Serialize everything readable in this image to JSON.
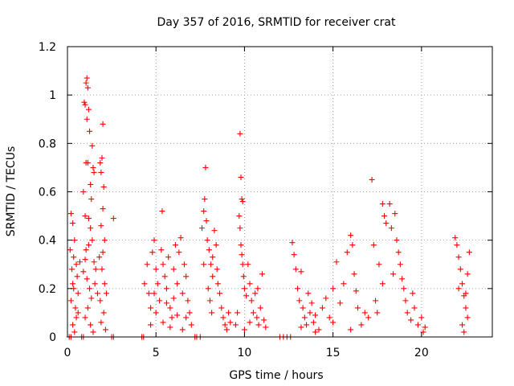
{
  "chart_data": {
    "type": "scatter",
    "title": "Day 357 of 2016, SRMTID for receiver crat",
    "xlabel": "GPS time / hours",
    "ylabel": "SRMTID / TECUs",
    "xlim": [
      0,
      24
    ],
    "ylim": [
      0,
      1.2
    ],
    "x_ticks": [
      0,
      5,
      10,
      15,
      20
    ],
    "y_ticks": [
      0,
      0.2,
      0.4,
      0.6,
      0.8,
      1,
      1.2
    ],
    "x_tick_labels": [
      "0",
      "5",
      "10",
      "15",
      "20"
    ],
    "y_tick_labels": [
      "0",
      "0.2",
      "0.4",
      "0.6",
      "0.8",
      "1",
      "1.2"
    ],
    "grid": true,
    "marker": "+",
    "color": "#ff0000",
    "series": [
      {
        "name": "SRMTID",
        "points": [
          [
            0.2,
            0.51
          ],
          [
            0.3,
            0.47
          ],
          [
            0.4,
            0.4
          ],
          [
            0.35,
            0.33
          ],
          [
            0.25,
            0.28
          ],
          [
            0.3,
            0.22
          ],
          [
            0.2,
            0.15
          ],
          [
            0.45,
            0.12
          ],
          [
            0.5,
            0.08
          ],
          [
            0.3,
            0.05
          ],
          [
            0.4,
            0.02
          ],
          [
            0.6,
            0.18
          ],
          [
            0.55,
            0.25
          ],
          [
            0.7,
            0.31
          ],
          [
            0.15,
            0.36
          ],
          [
            0.6,
            0.1
          ],
          [
            0.35,
            0.2
          ],
          [
            0.5,
            0.3
          ],
          [
            0.95,
            0.97
          ],
          [
            1.0,
            0.96
          ],
          [
            1.05,
            1.05
          ],
          [
            1.1,
            1.07
          ],
          [
            1.15,
            1.03
          ],
          [
            1.2,
            0.94
          ],
          [
            1.25,
            0.85
          ],
          [
            1.1,
            0.9
          ],
          [
            1.05,
            0.72
          ],
          [
            1.15,
            0.72
          ],
          [
            0.9,
            0.6
          ],
          [
            1.0,
            0.5
          ],
          [
            1.2,
            0.49
          ],
          [
            1.3,
            0.63
          ],
          [
            1.35,
            0.57
          ],
          [
            1.4,
            0.79
          ],
          [
            1.45,
            0.7
          ],
          [
            1.5,
            0.68
          ],
          [
            1.3,
            0.45
          ],
          [
            1.4,
            0.4
          ],
          [
            1.2,
            0.38
          ],
          [
            1.0,
            0.32
          ],
          [
            0.9,
            0.27
          ],
          [
            1.1,
            0.24
          ],
          [
            1.25,
            0.2
          ],
          [
            1.35,
            0.16
          ],
          [
            1.15,
            0.12
          ],
          [
            1.0,
            0.08
          ],
          [
            1.3,
            0.05
          ],
          [
            1.45,
            0.02
          ],
          [
            1.5,
            0.31
          ],
          [
            1.6,
            0.28
          ],
          [
            1.55,
            0.22
          ],
          [
            1.7,
            0.18
          ],
          [
            1.05,
            0.36
          ],
          [
            1.85,
            0.72
          ],
          [
            1.9,
            0.68
          ],
          [
            2.0,
            0.88
          ],
          [
            1.95,
            0.74
          ],
          [
            2.05,
            0.62
          ],
          [
            2.0,
            0.53
          ],
          [
            1.9,
            0.46
          ],
          [
            2.1,
            0.4
          ],
          [
            2.0,
            0.35
          ],
          [
            1.95,
            0.28
          ],
          [
            2.1,
            0.22
          ],
          [
            1.85,
            0.15
          ],
          [
            2.05,
            0.1
          ],
          [
            1.9,
            0.06
          ],
          [
            2.15,
            0.03
          ],
          [
            2.6,
            0.49
          ],
          [
            1.8,
            0.33
          ],
          [
            2.2,
            0.18
          ],
          [
            0.1,
            0.0
          ],
          [
            0.2,
            0.0
          ],
          [
            0.8,
            0.0
          ],
          [
            0.9,
            0.0
          ],
          [
            2.5,
            0.0
          ],
          [
            2.6,
            0.0
          ],
          [
            4.2,
            0.0
          ],
          [
            4.3,
            0.0
          ],
          [
            4.35,
            0.22
          ],
          [
            4.5,
            0.3
          ],
          [
            4.6,
            0.18
          ],
          [
            4.7,
            0.12
          ],
          [
            4.8,
            0.35
          ],
          [
            4.9,
            0.4
          ],
          [
            5.0,
            0.28
          ],
          [
            5.1,
            0.22
          ],
          [
            5.2,
            0.15
          ],
          [
            5.3,
            0.36
          ],
          [
            5.35,
            0.52
          ],
          [
            5.4,
            0.3
          ],
          [
            5.5,
            0.25
          ],
          [
            5.6,
            0.2
          ],
          [
            5.7,
            0.33
          ],
          [
            5.8,
            0.12
          ],
          [
            5.9,
            0.08
          ],
          [
            6.0,
            0.28
          ],
          [
            6.1,
            0.38
          ],
          [
            6.2,
            0.22
          ],
          [
            6.3,
            0.35
          ],
          [
            6.4,
            0.41
          ],
          [
            6.5,
            0.18
          ],
          [
            6.6,
            0.3
          ],
          [
            6.7,
            0.25
          ],
          [
            6.8,
            0.15
          ],
          [
            6.9,
            0.1
          ],
          [
            7.0,
            0.05
          ],
          [
            4.7,
            0.05
          ],
          [
            5.0,
            0.1
          ],
          [
            5.4,
            0.06
          ],
          [
            5.8,
            0.04
          ],
          [
            6.2,
            0.09
          ],
          [
            6.5,
            0.03
          ],
          [
            4.9,
            0.18
          ],
          [
            5.6,
            0.14
          ],
          [
            6.0,
            0.16
          ],
          [
            6.7,
            0.08
          ],
          [
            7.2,
            0.0
          ],
          [
            7.3,
            0.0
          ],
          [
            7.5,
            0.0
          ],
          [
            7.6,
            0.45
          ],
          [
            7.7,
            0.52
          ],
          [
            7.75,
            0.57
          ],
          [
            7.8,
            0.7
          ],
          [
            7.85,
            0.48
          ],
          [
            7.9,
            0.4
          ],
          [
            8.0,
            0.36
          ],
          [
            8.1,
            0.3
          ],
          [
            8.2,
            0.25
          ],
          [
            7.95,
            0.2
          ],
          [
            8.05,
            0.15
          ],
          [
            8.15,
            0.1
          ],
          [
            8.3,
            0.44
          ],
          [
            8.4,
            0.38
          ],
          [
            8.5,
            0.22
          ],
          [
            8.6,
            0.18
          ],
          [
            8.7,
            0.12
          ],
          [
            8.8,
            0.08
          ],
          [
            8.9,
            0.05
          ],
          [
            9.0,
            0.03
          ],
          [
            9.1,
            0.1
          ],
          [
            9.2,
            0.06
          ],
          [
            7.7,
            0.3
          ],
          [
            8.2,
            0.33
          ],
          [
            8.45,
            0.28
          ],
          [
            9.75,
            0.84
          ],
          [
            9.8,
            0.66
          ],
          [
            9.85,
            0.57
          ],
          [
            9.9,
            0.56
          ],
          [
            9.7,
            0.5
          ],
          [
            9.75,
            0.45
          ],
          [
            9.8,
            0.38
          ],
          [
            9.85,
            0.34
          ],
          [
            9.9,
            0.3
          ],
          [
            9.95,
            0.25
          ],
          [
            10.0,
            0.2
          ],
          [
            10.1,
            0.17
          ],
          [
            10.2,
            0.3
          ],
          [
            10.3,
            0.22
          ],
          [
            10.4,
            0.15
          ],
          [
            10.5,
            0.1
          ],
          [
            10.6,
            0.18
          ],
          [
            10.7,
            0.08
          ],
          [
            10.8,
            0.05
          ],
          [
            10.9,
            0.12
          ],
          [
            11.0,
            0.26
          ],
          [
            11.1,
            0.07
          ],
          [
            11.2,
            0.04
          ],
          [
            9.6,
            0.1
          ],
          [
            9.5,
            0.05
          ],
          [
            10.0,
            0.03
          ],
          [
            10.3,
            0.06
          ],
          [
            10.75,
            0.2
          ],
          [
            12.0,
            0.0
          ],
          [
            12.2,
            0.0
          ],
          [
            12.4,
            0.0
          ],
          [
            12.6,
            0.0
          ],
          [
            12.7,
            0.39
          ],
          [
            12.8,
            0.34
          ],
          [
            12.9,
            0.28
          ],
          [
            13.0,
            0.2
          ],
          [
            13.1,
            0.15
          ],
          [
            13.2,
            0.27
          ],
          [
            13.3,
            0.12
          ],
          [
            13.4,
            0.08
          ],
          [
            13.5,
            0.05
          ],
          [
            13.6,
            0.18
          ],
          [
            13.7,
            0.1
          ],
          [
            13.8,
            0.14
          ],
          [
            13.9,
            0.06
          ],
          [
            14.0,
            0.09
          ],
          [
            14.2,
            0.03
          ],
          [
            14.4,
            0.12
          ],
          [
            14.6,
            0.16
          ],
          [
            14.8,
            0.08
          ],
          [
            15.0,
            0.2
          ],
          [
            15.2,
            0.31
          ],
          [
            15.4,
            0.14
          ],
          [
            15.6,
            0.22
          ],
          [
            15.8,
            0.35
          ],
          [
            16.0,
            0.42
          ],
          [
            16.1,
            0.38
          ],
          [
            16.2,
            0.26
          ],
          [
            16.3,
            0.19
          ],
          [
            16.4,
            0.12
          ],
          [
            16.6,
            0.05
          ],
          [
            16.8,
            0.1
          ],
          [
            17.0,
            0.08
          ],
          [
            17.2,
            0.65
          ],
          [
            17.3,
            0.38
          ],
          [
            17.4,
            0.15
          ],
          [
            17.5,
            0.1
          ],
          [
            17.6,
            0.3
          ],
          [
            17.8,
            0.55
          ],
          [
            17.9,
            0.5
          ],
          [
            18.0,
            0.47
          ],
          [
            18.2,
            0.55
          ],
          [
            18.3,
            0.45
          ],
          [
            18.5,
            0.51
          ],
          [
            18.6,
            0.4
          ],
          [
            18.7,
            0.35
          ],
          [
            18.8,
            0.3
          ],
          [
            18.9,
            0.24
          ],
          [
            19.0,
            0.2
          ],
          [
            19.1,
            0.15
          ],
          [
            19.2,
            0.1
          ],
          [
            19.4,
            0.07
          ],
          [
            19.6,
            0.12
          ],
          [
            19.8,
            0.05
          ],
          [
            20.0,
            0.08
          ],
          [
            20.2,
            0.04
          ],
          [
            13.2,
            0.04
          ],
          [
            14.0,
            0.02
          ],
          [
            15.0,
            0.06
          ],
          [
            16.0,
            0.03
          ],
          [
            17.8,
            0.22
          ],
          [
            18.4,
            0.26
          ],
          [
            19.5,
            0.18
          ],
          [
            20.1,
            0.02
          ],
          [
            21.9,
            0.41
          ],
          [
            22.0,
            0.38
          ],
          [
            22.1,
            0.33
          ],
          [
            22.2,
            0.28
          ],
          [
            22.3,
            0.22
          ],
          [
            22.4,
            0.17
          ],
          [
            22.5,
            0.12
          ],
          [
            22.6,
            0.08
          ],
          [
            22.7,
            0.35
          ],
          [
            22.3,
            0.05
          ],
          [
            22.4,
            0.02
          ],
          [
            22.1,
            0.2
          ],
          [
            22.6,
            0.26
          ],
          [
            22.5,
            0.18
          ]
        ]
      }
    ]
  }
}
